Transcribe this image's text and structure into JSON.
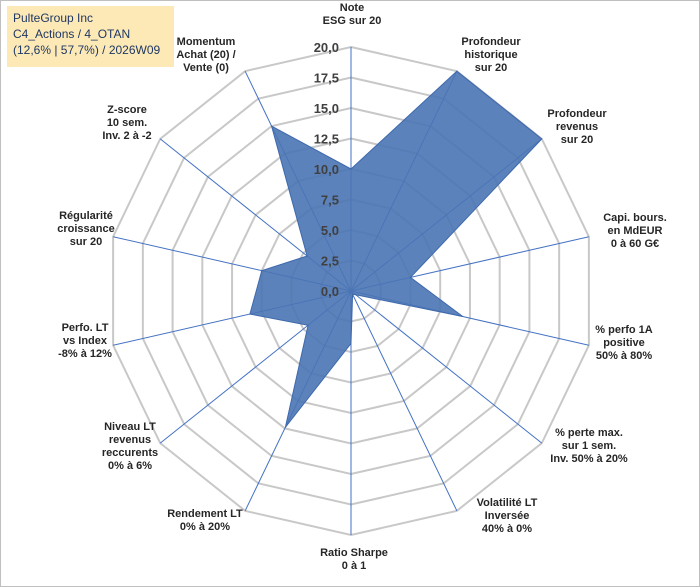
{
  "header": {
    "company": "PulteGroup Inc",
    "category": "C4_Actions / 4_OTAN",
    "stats": "(12,6% | 57,7%) / 2026W09"
  },
  "colors": {
    "fill": "#4a74b4",
    "stroke": "#3e69ad",
    "grid": "#c8c8c8",
    "spoke": "#4472c4",
    "title_bg": "#fde9b6"
  },
  "chart_data": {
    "type": "radar",
    "rmax": 20,
    "ticks": [
      "0,0",
      "2,5",
      "5,0",
      "7,5",
      "10,0",
      "12,5",
      "15,0",
      "17,5",
      "20,0"
    ],
    "axes": [
      {
        "label": [
          "Note",
          "ESG sur 20"
        ],
        "value": 10.0
      },
      {
        "label": [
          "Profondeur",
          "historique",
          "sur 20"
        ],
        "value": 20.0
      },
      {
        "label": [
          "Profondeur",
          "revenus",
          "sur 20"
        ],
        "value": 20.0
      },
      {
        "label": [
          "Capi. bours.",
          "en MdEUR",
          "0 à 60 G€"
        ],
        "value": 5.0
      },
      {
        "label": [
          "% perfo 1A",
          "positive",
          "50% à 80%"
        ],
        "value": 9.4
      },
      {
        "label": [
          "% perte max.",
          "sur 1 sem.",
          "Inv. 50% à 20%"
        ],
        "value": 0.5
      },
      {
        "label": [
          "Volatilité LT",
          "Inversée",
          "40% à 0%"
        ],
        "value": 0.3
      },
      {
        "label": [
          "Ratio Sharpe",
          "0 à 1"
        ],
        "value": 4.3
      },
      {
        "label": [
          "Rendement LT",
          "0% à 20%"
        ],
        "value": 12.4
      },
      {
        "label": [
          "Niveau LT",
          "revenus",
          "reccurents",
          "0% à 6%"
        ],
        "value": 4.5
      },
      {
        "label": [
          "Perfo. LT",
          "vs Index",
          "-8% à 12%"
        ],
        "value": 8.5
      },
      {
        "label": [
          "Régularité",
          "croissance",
          "sur 20"
        ],
        "value": 7.5
      },
      {
        "label": [
          "Z-score",
          "10 sem.",
          "Inv. 2 à -2"
        ],
        "value": 4.6
      },
      {
        "label": [
          "Momentum",
          "Achat (20) /",
          "Vente (0)"
        ],
        "value": 15.0
      }
    ]
  }
}
